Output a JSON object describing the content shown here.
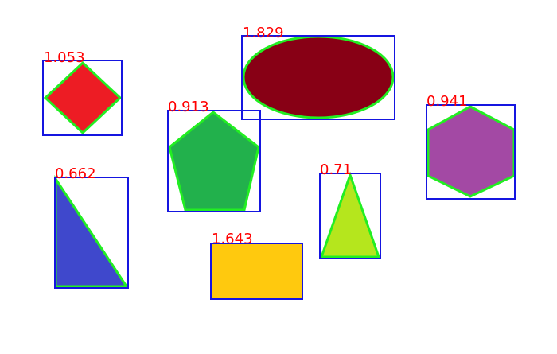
{
  "style": {
    "box_color": "#1515e0",
    "outline_color": "#22ee22",
    "label_color": "#ff0000"
  },
  "detections": [
    {
      "shape": "diamond",
      "score_label": "1.053",
      "fill": "#ed1c24"
    },
    {
      "shape": "ellipse",
      "score_label": "1.829",
      "fill": "#880015"
    },
    {
      "shape": "pentagon",
      "score_label": "0.913",
      "fill": "#22b14c"
    },
    {
      "shape": "hexagon",
      "score_label": "0.941",
      "fill": "#a349a4"
    },
    {
      "shape": "right-triangle",
      "score_label": "0.662",
      "fill": "#3f48cc"
    },
    {
      "shape": "triangle",
      "score_label": "0.71",
      "fill": "#b5e61d"
    },
    {
      "shape": "rectangle",
      "score_label": "1.643",
      "fill": "#ffc90e"
    }
  ]
}
